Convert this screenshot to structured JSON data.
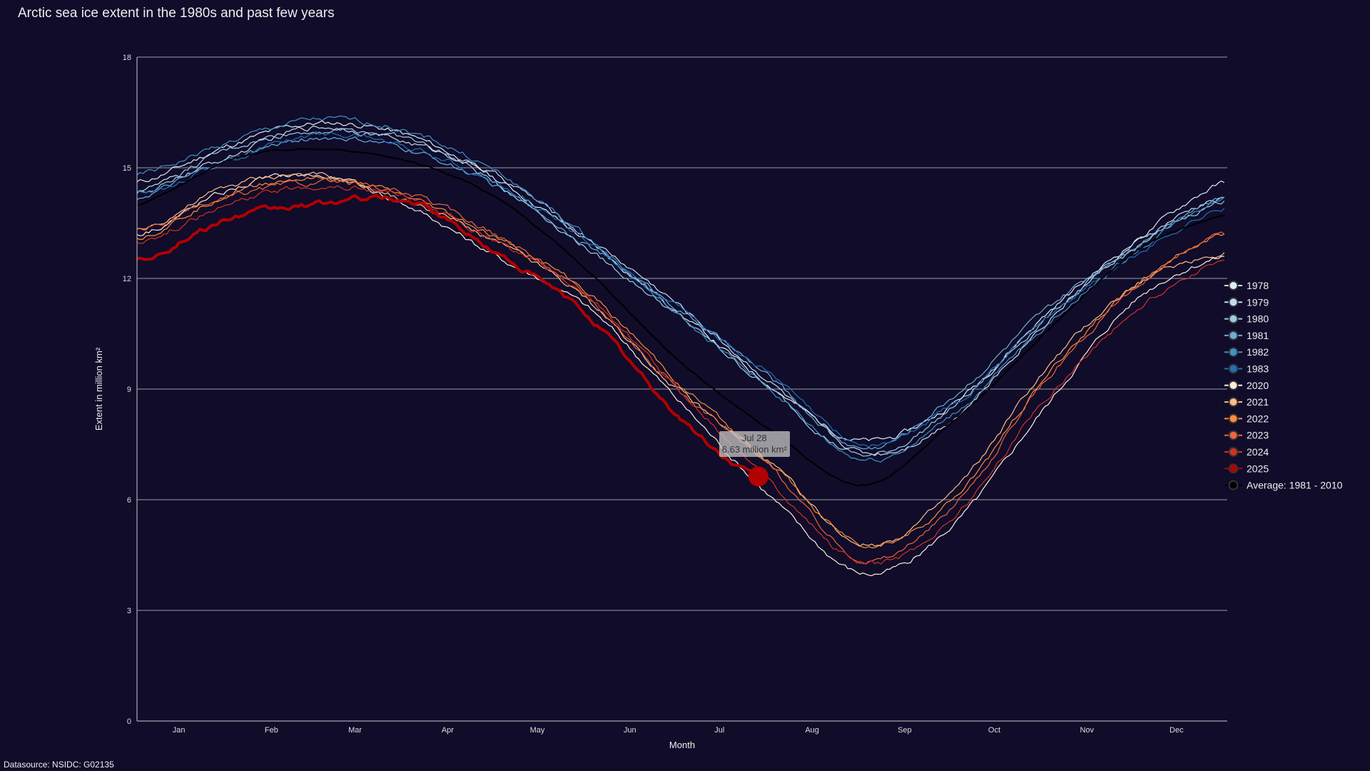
{
  "title": "Arctic sea ice extent in the 1980s and past few years",
  "datasource": "Datasource: NSIDC: G02135",
  "chart_data": {
    "type": "line",
    "title": "Arctic sea ice extent in the 1980s and past few years",
    "xlabel": "Month",
    "ylabel": "Extent in million km²",
    "ylim": [
      0,
      18
    ],
    "yticks": [
      "0",
      "3",
      "6",
      "9",
      "12",
      "15",
      "18"
    ],
    "xticks": [
      "Jan",
      "Feb",
      "Mar",
      "Apr",
      "May",
      "Jun",
      "Jul",
      "Aug",
      "Sep",
      "Oct",
      "Nov",
      "Dec"
    ],
    "grid": true,
    "legend_placement": "right",
    "anchor_days": [
      1,
      32,
      60,
      91,
      121,
      152,
      182,
      213,
      244,
      274,
      305,
      335,
      365
    ],
    "series": [
      {
        "name": "1978",
        "color": "#deebf7",
        "values": [
          14.6,
          15.6,
          16.2,
          15.9,
          14.7,
          13.0,
          11.1,
          9.1,
          7.6,
          8.6,
          11.0,
          13.0,
          14.6
        ]
      },
      {
        "name": "1979",
        "color": "#c6dbef",
        "values": [
          14.4,
          15.3,
          16.1,
          15.7,
          14.8,
          13.1,
          11.3,
          9.2,
          7.3,
          8.2,
          10.8,
          12.9,
          14.2
        ]
      },
      {
        "name": "1980",
        "color": "#9ecae1",
        "values": [
          14.3,
          15.5,
          16.0,
          15.8,
          14.6,
          12.8,
          11.0,
          9.0,
          7.2,
          8.5,
          10.9,
          12.8,
          14.1
        ]
      },
      {
        "name": "1981",
        "color": "#6baed6",
        "values": [
          14.2,
          15.2,
          15.8,
          15.5,
          14.5,
          12.9,
          11.2,
          9.3,
          7.4,
          8.8,
          11.1,
          12.9,
          14.2
        ]
      },
      {
        "name": "1982",
        "color": "#4292c6",
        "values": [
          14.8,
          15.7,
          16.3,
          16.0,
          14.9,
          13.1,
          11.0,
          9.0,
          7.1,
          8.3,
          10.7,
          12.7,
          14.2
        ]
      },
      {
        "name": "1983",
        "color": "#2171b5",
        "values": [
          14.3,
          15.2,
          15.9,
          15.6,
          14.6,
          13.0,
          11.2,
          9.4,
          7.5,
          8.6,
          10.9,
          12.6,
          13.9
        ]
      },
      {
        "name": "2020",
        "color": "#feedde",
        "values": [
          13.2,
          14.4,
          14.8,
          14.0,
          12.6,
          11.2,
          8.7,
          6.1,
          4.0,
          5.3,
          8.5,
          11.4,
          12.6
        ]
      },
      {
        "name": "2021",
        "color": "#fdbe85",
        "values": [
          13.3,
          14.5,
          14.8,
          14.1,
          13.0,
          11.4,
          9.0,
          7.0,
          4.8,
          6.2,
          9.5,
          11.8,
          12.7
        ]
      },
      {
        "name": "2022",
        "color": "#fd8d3c",
        "values": [
          13.1,
          14.3,
          14.7,
          14.2,
          13.1,
          11.6,
          9.2,
          7.0,
          4.8,
          6.0,
          9.3,
          11.8,
          13.2
        ]
      },
      {
        "name": "2023",
        "color": "#f0643c",
        "values": [
          13.3,
          14.2,
          14.6,
          14.3,
          13.2,
          11.5,
          9.0,
          6.9,
          4.4,
          5.8,
          9.2,
          11.7,
          13.2
        ]
      },
      {
        "name": "2024",
        "color": "#d7301f",
        "values": [
          13.0,
          14.0,
          14.5,
          14.2,
          13.0,
          11.5,
          9.0,
          6.5,
          4.3,
          5.5,
          8.7,
          11.1,
          12.5
        ]
      },
      {
        "name": "2025",
        "color": "#b30000",
        "values": [
          12.5,
          13.6,
          14.0,
          14.1,
          12.7,
          11.0,
          8.3
        ],
        "last_point": {
          "day": 209,
          "value": 6.63
        }
      },
      {
        "name": "Average: 1981 - 2010",
        "color": "#000000",
        "values": [
          14.0,
          15.2,
          15.5,
          15.2,
          14.2,
          12.2,
          9.8,
          7.9,
          6.4,
          8.1,
          10.5,
          12.7,
          13.7
        ]
      }
    ],
    "tooltip": {
      "date": "Jul 28",
      "value": "6.63 million km²"
    }
  }
}
